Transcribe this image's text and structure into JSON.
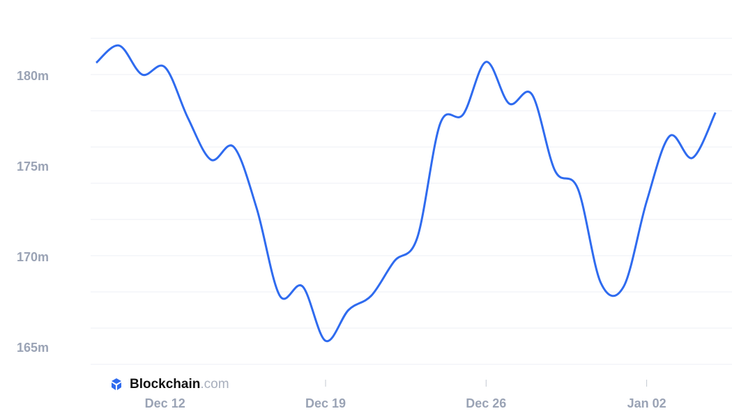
{
  "chart_data": {
    "type": "line",
    "x": [
      "Dec 09",
      "Dec 10",
      "Dec 11",
      "Dec 12",
      "Dec 13",
      "Dec 14",
      "Dec 15",
      "Dec 16",
      "Dec 17",
      "Dec 18",
      "Dec 19",
      "Dec 20",
      "Dec 21",
      "Dec 22",
      "Dec 23",
      "Dec 24",
      "Dec 25",
      "Dec 26",
      "Dec 27",
      "Dec 28",
      "Dec 29",
      "Dec 30",
      "Dec 31",
      "Jan 01",
      "Jan 02",
      "Jan 03",
      "Jan 04",
      "Jan 05"
    ],
    "xticks": [
      {
        "value": "Dec 12",
        "label": "Dec 12"
      },
      {
        "value": "Dec 19",
        "label": "Dec 19"
      },
      {
        "value": "Dec 26",
        "label": "Dec 26"
      },
      {
        "value": "Jan 02",
        "label": "Jan 02"
      }
    ],
    "series": [
      {
        "color": "#2f6bef",
        "values": [
          180.65,
          181.6,
          180.0,
          180.4,
          177.6,
          175.3,
          176.0,
          172.6,
          167.8,
          168.3,
          165.3,
          167.0,
          167.8,
          169.7,
          171.0,
          177.3,
          177.8,
          180.7,
          178.4,
          178.9,
          174.7,
          173.7,
          168.5,
          168.3,
          173.0,
          176.6,
          175.4,
          177.9
        ]
      }
    ],
    "ylim": [
      164,
      182
    ],
    "yticks": [
      {
        "value": 165,
        "label": "165m"
      },
      {
        "value": 170,
        "label": "170m"
      },
      {
        "value": 175,
        "label": "175m"
      },
      {
        "value": 180,
        "label": "180m"
      }
    ],
    "ygrid": [
      164,
      166,
      168,
      170,
      172,
      174,
      176,
      178,
      180,
      182
    ],
    "watermark": {
      "brand": "Blockchain",
      "suffix": ".com"
    }
  }
}
